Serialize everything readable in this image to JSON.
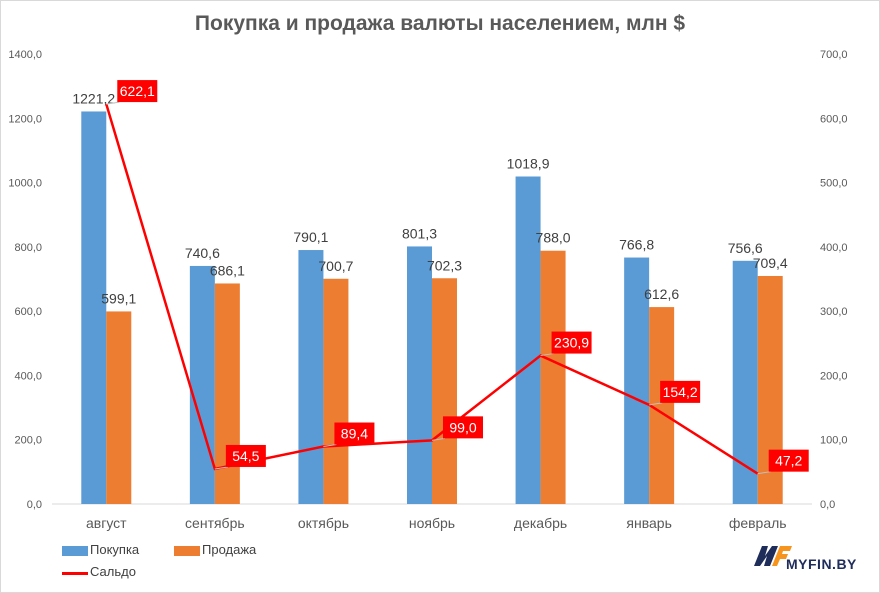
{
  "chart_data": {
    "type": "bar",
    "title": "Покупка и продажа валюты населением, млн $",
    "categories": [
      "август",
      "сентябрь",
      "октябрь",
      "ноябрь",
      "декабрь",
      "январь",
      "февраль"
    ],
    "series": [
      {
        "name": "Покупка",
        "axis": "left",
        "kind": "bar",
        "color": "#5b9bd5",
        "values": [
          1221.2,
          740.6,
          790.1,
          801.3,
          1018.9,
          766.8,
          756.6
        ],
        "labels": [
          "1221,2",
          "740,6",
          "790,1",
          "801,3",
          "1018,9",
          "766,8",
          "756,6"
        ]
      },
      {
        "name": "Продажа",
        "axis": "left",
        "kind": "bar",
        "color": "#ed7d31",
        "values": [
          599.1,
          686.1,
          700.7,
          702.3,
          788.0,
          612.6,
          709.4
        ],
        "labels": [
          "599,1",
          "686,1",
          "700,7",
          "702,3",
          "788,0",
          "612,6",
          "709,4"
        ]
      },
      {
        "name": "Сальдо",
        "axis": "right",
        "kind": "line",
        "color": "#ff0000",
        "values": [
          622.1,
          54.5,
          89.4,
          99.0,
          230.9,
          154.2,
          47.2
        ],
        "labels": [
          "622,1",
          "54,5",
          "89,4",
          "99,0",
          "230,9",
          "154,2",
          "47,2"
        ]
      }
    ],
    "left_axis": {
      "min": 0,
      "max": 1400,
      "ticks": [
        "0,0",
        "200,0",
        "400,0",
        "600,0",
        "800,0",
        "1000,0",
        "1200,0",
        "1400,0"
      ]
    },
    "right_axis": {
      "min": 0,
      "max": 700,
      "ticks": [
        "0,0",
        "100,0",
        "200,0",
        "300,0",
        "400,0",
        "500,0",
        "600,0",
        "700,0"
      ]
    },
    "legend_position": "bottom-left",
    "grid": false
  },
  "legend": {
    "items": [
      {
        "label": "Покупка",
        "color": "#5b9bd5"
      },
      {
        "label": "Продажа",
        "color": "#ed7d31"
      },
      {
        "label": "Сальдо",
        "color": "#ff0000"
      }
    ]
  },
  "logo": {
    "text": "MYFIN.BY"
  }
}
